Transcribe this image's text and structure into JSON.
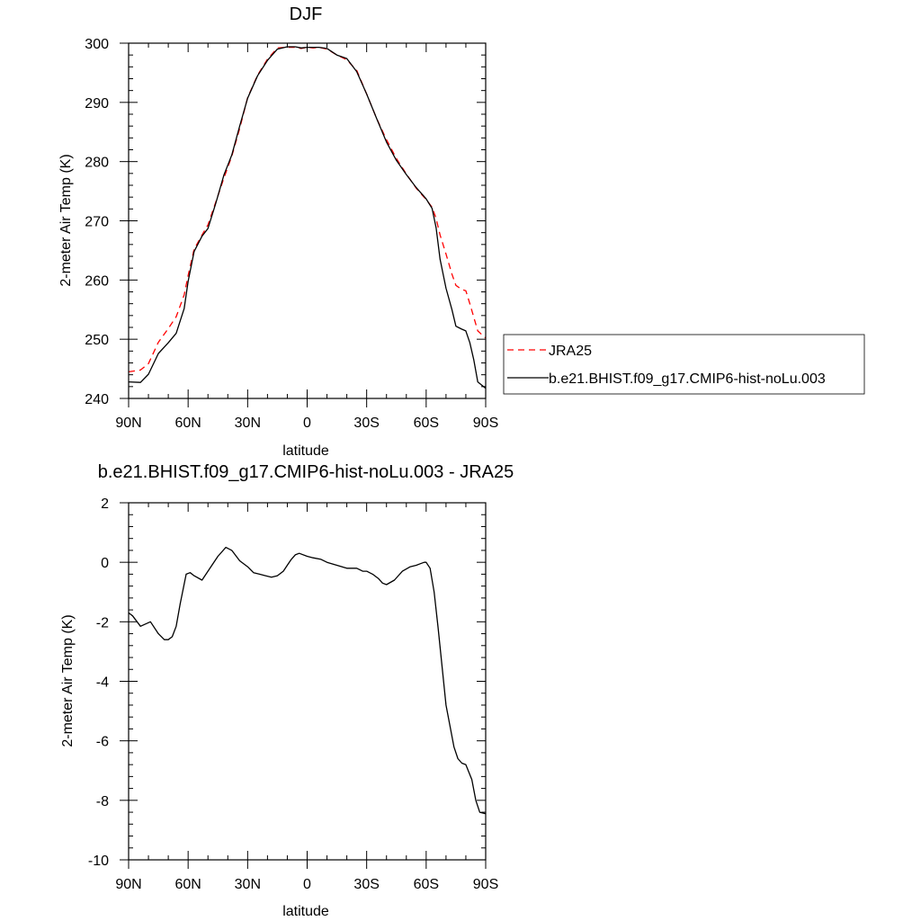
{
  "chart_data": [
    {
      "type": "line",
      "title": "DJF",
      "xlabel": "latitude",
      "ylabel": "2-meter Air Temp (K)",
      "xlim": [
        90,
        -90
      ],
      "ylim": [
        240,
        300
      ],
      "x_ticks": [
        90,
        60,
        30,
        0,
        -30,
        -60,
        -90
      ],
      "x_tick_labels": [
        "90N",
        "60N",
        "30N",
        "0",
        "30S",
        "60S",
        "90S"
      ],
      "y_ticks": [
        240,
        250,
        260,
        270,
        280,
        290,
        300
      ],
      "y_tick_labels": [
        "240",
        "250",
        "260",
        "270",
        "280",
        "290",
        "300"
      ],
      "grid": false,
      "legend": {
        "placement": "right",
        "entries": [
          "JRA25",
          "b.e21.BHIST.f09_g17.CMIP6-hist-noLu.003"
        ]
      },
      "series": [
        {
          "name": "JRA25",
          "color": "#ff0000",
          "dash": "dashed",
          "x": [
            90,
            84,
            80,
            75,
            70,
            66,
            62,
            60,
            57,
            53,
            50,
            46,
            42,
            38,
            34,
            30,
            25,
            20,
            15,
            10,
            6,
            3,
            0,
            -3,
            -6,
            -10,
            -15,
            -20,
            -25,
            -30,
            -35,
            -40,
            -45,
            -50,
            -55,
            -60,
            -63,
            -65,
            -67,
            -70,
            -73,
            -75,
            -78,
            -80,
            -82,
            -84,
            -86,
            -90
          ],
          "y": [
            244.5,
            244.8,
            245.9,
            249.5,
            251.8,
            253.8,
            257.5,
            260.8,
            265.2,
            267.6,
            269.3,
            273.2,
            277.2,
            280.9,
            285.6,
            290.8,
            294.6,
            297.3,
            299.2,
            299.3,
            299.3,
            299.1,
            299.3,
            299.2,
            299.3,
            299.0,
            298.0,
            297.2,
            295.4,
            291.4,
            287.3,
            283.7,
            280.5,
            277.9,
            275.5,
            273.6,
            272.3,
            270.4,
            267.6,
            264.4,
            261.0,
            259.1,
            258.4,
            258.2,
            256.0,
            253.7,
            251.4,
            250.2
          ]
        },
        {
          "name": "b.e21.BHIST.f09_g17.CMIP6-hist-noLu.003",
          "color": "#000000",
          "dash": "solid",
          "x": [
            90,
            84,
            80,
            75,
            70,
            66,
            62,
            60,
            57,
            53,
            50,
            46,
            42,
            38,
            34,
            30,
            25,
            20,
            15,
            10,
            6,
            3,
            0,
            -3,
            -6,
            -10,
            -15,
            -20,
            -25,
            -30,
            -35,
            -40,
            -45,
            -50,
            -55,
            -60,
            -63,
            -65,
            -67,
            -70,
            -73,
            -75,
            -78,
            -80,
            -82,
            -84,
            -86,
            -90
          ],
          "y": [
            242.8,
            242.7,
            244.1,
            247.6,
            249.4,
            251.0,
            255.2,
            259.8,
            264.8,
            267.4,
            268.7,
            273.0,
            277.7,
            281.1,
            286.0,
            290.7,
            294.5,
            297.1,
            299.0,
            299.4,
            299.4,
            299.2,
            299.3,
            299.3,
            299.3,
            299.1,
            298.0,
            297.4,
            295.2,
            291.4,
            287.3,
            283.3,
            280.2,
            277.8,
            275.6,
            273.7,
            272.1,
            268.8,
            263.5,
            258.6,
            255.0,
            252.2,
            251.7,
            251.4,
            249.4,
            246.5,
            242.8,
            241.7
          ]
        }
      ]
    },
    {
      "type": "line",
      "title": "b.e21.BHIST.f09_g17.CMIP6-hist-noLu.003 - JRA25",
      "xlabel": "latitude",
      "ylabel": "2-meter Air Temp (K)",
      "xlim": [
        90,
        -90
      ],
      "ylim": [
        -10,
        2
      ],
      "x_ticks": [
        90,
        60,
        30,
        0,
        -30,
        -60,
        -90
      ],
      "x_tick_labels": [
        "90N",
        "60N",
        "30N",
        "0",
        "30S",
        "60S",
        "90S"
      ],
      "y_ticks": [
        -10,
        -8,
        -6,
        -4,
        -2,
        0,
        2
      ],
      "y_tick_labels": [
        "-10",
        "-8",
        "-6",
        "-4",
        "-2",
        "0",
        "2"
      ],
      "grid": false,
      "series": [
        {
          "color": "#000000",
          "dash": "solid",
          "x": [
            90,
            88,
            84,
            79,
            75,
            72,
            70,
            68,
            66,
            64,
            61,
            59,
            57,
            53,
            48,
            45,
            41,
            38,
            34,
            30,
            27,
            24,
            21,
            18,
            15,
            12,
            10,
            8,
            6,
            4,
            0,
            -3,
            -7,
            -10,
            -15,
            -20,
            -25,
            -28,
            -30,
            -33,
            -36,
            -38,
            -40,
            -44,
            -48,
            -52,
            -55,
            -57,
            -59,
            -60,
            -62,
            -64,
            -66,
            -68,
            -70,
            -72,
            -74,
            -76,
            -78,
            -80,
            -83,
            -85,
            -87,
            -90
          ],
          "y": [
            -1.7,
            -1.8,
            -2.15,
            -2.0,
            -2.4,
            -2.6,
            -2.6,
            -2.5,
            -2.15,
            -1.4,
            -0.4,
            -0.35,
            -0.45,
            -0.6,
            -0.1,
            0.2,
            0.5,
            0.4,
            0.05,
            -0.15,
            -0.35,
            -0.4,
            -0.45,
            -0.5,
            -0.45,
            -0.3,
            -0.1,
            0.1,
            0.25,
            0.3,
            0.2,
            0.15,
            0.1,
            0.0,
            -0.1,
            -0.2,
            -0.2,
            -0.3,
            -0.3,
            -0.4,
            -0.55,
            -0.7,
            -0.75,
            -0.6,
            -0.3,
            -0.15,
            -0.1,
            -0.05,
            0.0,
            0.0,
            -0.2,
            -1.0,
            -2.2,
            -3.5,
            -4.8,
            -5.5,
            -6.2,
            -6.6,
            -6.75,
            -6.8,
            -7.3,
            -8.0,
            -8.4,
            -8.45
          ]
        }
      ]
    }
  ]
}
